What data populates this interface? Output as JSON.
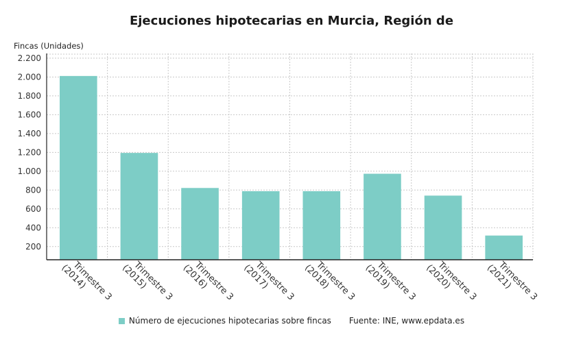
{
  "colors": {
    "bar": "#7dcdc6",
    "grid": "#c8c8c8",
    "axis": "#222222"
  },
  "chart_data": {
    "type": "bar",
    "title": "Ejecuciones hipotecarias en Murcia, Región de",
    "ylabel": "Fincas (Unidades)",
    "xlabel": "",
    "categories": [
      [
        "Trimestre 3",
        "(2014)"
      ],
      [
        "Trimestre 3",
        "(2015)"
      ],
      [
        "Trimestre 3",
        "(2016)"
      ],
      [
        "Trimestre 3",
        "(2017)"
      ],
      [
        "Trimestre 3",
        "(2018)"
      ],
      [
        "Trimestre 3",
        "(2019)"
      ],
      [
        "Trimestre 3",
        "(2020)"
      ],
      [
        "Trimestre 3",
        "(2021)"
      ]
    ],
    "series": [
      {
        "name": "Número de ejecuciones hipotecarias sobre fincas",
        "values": [
          2011,
          1194,
          822,
          788,
          788,
          973,
          741,
          317
        ]
      }
    ],
    "ylim": [
      60,
      2250
    ],
    "yticks": [
      200,
      400,
      600,
      800,
      1000,
      1200,
      1400,
      1600,
      1800,
      2000,
      2200
    ],
    "ytick_labels": [
      "200",
      "400",
      "600",
      "800",
      "1.000",
      "1.200",
      "1.400",
      "1.600",
      "1.800",
      "2.000",
      "2.200"
    ],
    "grid": true,
    "legend_position": "bottom",
    "source": "Fuente: INE, www.epdata.es"
  }
}
